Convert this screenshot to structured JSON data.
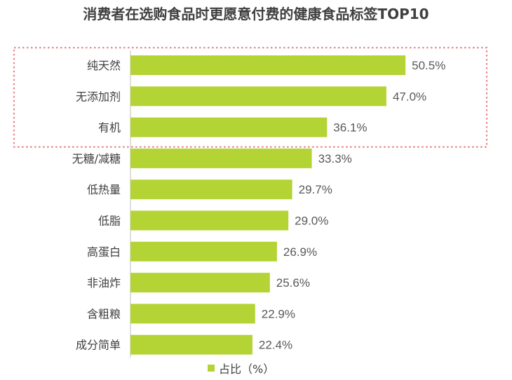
{
  "chart_data": {
    "type": "bar",
    "orientation": "horizontal",
    "title": "消费者在选购食品时更愿意付费的健康食品标签TOP10",
    "categories": [
      "纯天然",
      "无添加剂",
      "有机",
      "无糖/减糖",
      "低热量",
      "低脂",
      "高蛋白",
      "非油炸",
      "含粗粮",
      "成分简单"
    ],
    "series": [
      {
        "name": "占比（%）",
        "values": [
          50.5,
          47.0,
          36.1,
          33.3,
          29.7,
          29.0,
          26.9,
          25.6,
          22.9,
          22.4
        ],
        "labels": [
          "50.5%",
          "47.0%",
          "36.1%",
          "33.3%",
          "29.7%",
          "29.0%",
          "26.9%",
          "25.6%",
          "22.9%",
          "22.4%"
        ]
      }
    ],
    "xlim": [
      0,
      51
    ],
    "grid": false,
    "legend_position": "bottom",
    "highlight": {
      "style": "dashed-box",
      "categories": [
        "纯天然",
        "无添加剂",
        "有机"
      ]
    },
    "colors": {
      "bar": "#b4d334",
      "highlight_border": "#e8878c",
      "axis": "#bfbfbf"
    }
  }
}
